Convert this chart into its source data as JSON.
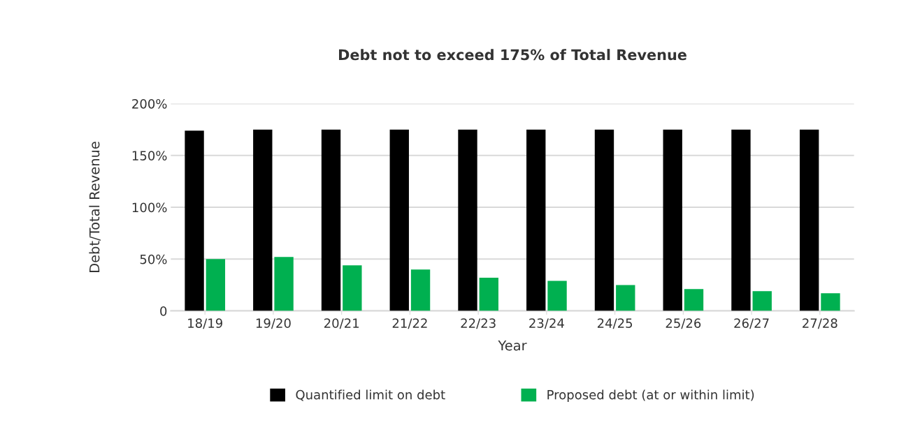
{
  "chart_data": {
    "type": "bar",
    "title": "Debt not to exceed 175% of Total Revenue",
    "xlabel": "Year",
    "ylabel": "Debt/Total Revenue",
    "categories": [
      "18/19",
      "19/20",
      "20/21",
      "21/22",
      "22/23",
      "23/24",
      "24/25",
      "25/26",
      "26/27",
      "27/28"
    ],
    "series": [
      {
        "name": "Quantified limit on debt",
        "color": "#000000",
        "values": [
          174,
          175,
          175,
          175,
          175,
          175,
          175,
          175,
          175,
          175
        ]
      },
      {
        "name": "Proposed debt (at or within limit)",
        "color": "#00b050",
        "values": [
          50,
          52,
          44,
          40,
          32,
          29,
          25,
          21,
          19,
          17
        ]
      }
    ],
    "ylim": [
      0,
      200
    ],
    "yticks": [
      0,
      {
        "value": 50,
        "label": "50%"
      },
      {
        "value": 100,
        "label": "100%"
      },
      {
        "value": 150,
        "label": "150%"
      },
      {
        "value": 200,
        "label": "200%"
      }
    ],
    "grid": "y",
    "legend": "bottom"
  }
}
